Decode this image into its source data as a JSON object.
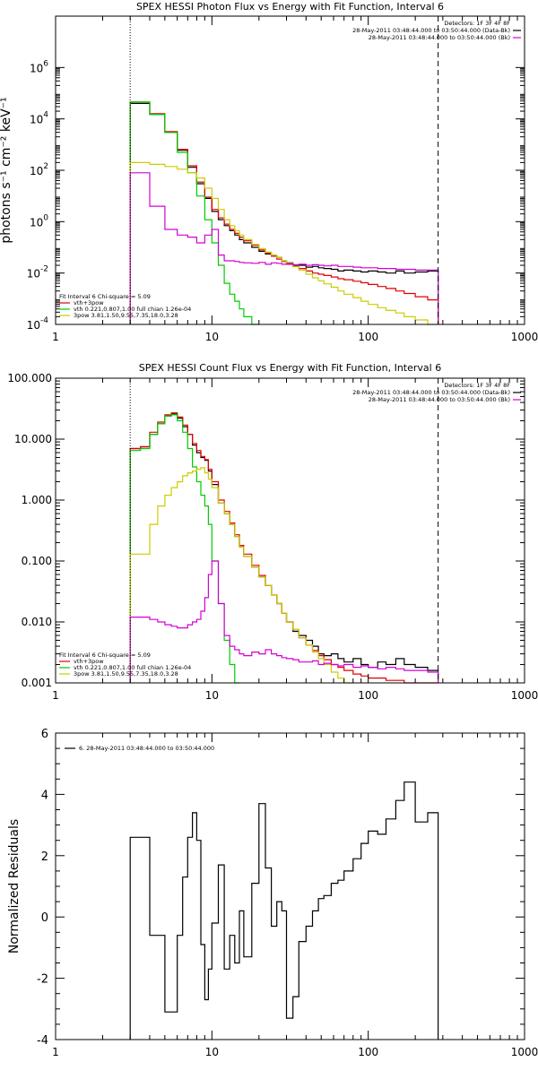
{
  "chart_data": [
    {
      "type": "line",
      "title": "SPEX HESSI Photon Flux vs Energy with Fit Function, Interval 6",
      "ylabel": "photons s⁻¹ cm⁻² keV⁻¹",
      "xlabel": "",
      "xscale": "log",
      "yscale": "log",
      "xlim": [
        1,
        1000
      ],
      "ylim": [
        0.0001,
        100000000
      ],
      "x_ticks": [
        "1",
        "10",
        "100",
        "1000"
      ],
      "y_ticks": [
        {
          "mantissa": "10",
          "exp": "-4"
        },
        {
          "mantissa": "10",
          "exp": "-2"
        },
        {
          "mantissa": "10",
          "exp": "0"
        },
        {
          "mantissa": "10",
          "exp": "2"
        },
        {
          "mantissa": "10",
          "exp": "4"
        },
        {
          "mantissa": "10",
          "exp": "6"
        }
      ],
      "markers": {
        "dotted_x": 3.0,
        "dashed_x": 280
      },
      "legend_top": [
        {
          "text": "Detectors: 1F 3F 4F 8F",
          "color": "#000000"
        },
        {
          "text": "28-May-2011 03:48:44.000 to 03:50:44.000 (Data-Bk)",
          "color": "#000000"
        },
        {
          "text": "28-May-2011 03:48:44.000 to 03:50:44.000 (Bk)",
          "color": "#d400d4"
        }
      ],
      "legend_bottom": [
        {
          "text": "Fit Interval 6   Chi-square = 5.09",
          "color": "#000000"
        },
        {
          "text": "vth+3pow",
          "color": "#e00000"
        },
        {
          "text": "vth 0.221,0.807,1.00  full chian 1.26e-04",
          "color": "#00cc00"
        },
        {
          "text": "3pow 3.81,1.50,9.55,7.35,18.0,3.28",
          "color": "#cccc00"
        }
      ],
      "series": [
        {
          "name": "Data-Bk",
          "color": "#000000",
          "edges": [
            3,
            3.5,
            4,
            5,
            6,
            7,
            8,
            9,
            10,
            11,
            12,
            13,
            14,
            15,
            16,
            18,
            20,
            22,
            24,
            26,
            28,
            30,
            33,
            36,
            40,
            44,
            48,
            52,
            58,
            64,
            70,
            80,
            90,
            100,
            115,
            130,
            150,
            170,
            200,
            240,
            280
          ],
          "values": [
            40000,
            40000,
            15000,
            3000,
            600,
            130,
            30,
            8,
            2.5,
            1.2,
            0.7,
            0.45,
            0.3,
            0.2,
            0.15,
            0.1,
            0.07,
            0.055,
            0.045,
            0.04,
            0.03,
            0.025,
            0.02,
            0.02,
            0.017,
            0.018,
            0.016,
            0.015,
            0.014,
            0.012,
            0.013,
            0.012,
            0.011,
            0.012,
            0.011,
            0.01,
            0.012,
            0.01,
            0.011,
            0.012
          ]
        },
        {
          "name": "vth+3pow",
          "color": "#e00000",
          "edges": [
            3,
            3.5,
            4,
            5,
            6,
            7,
            8,
            9,
            10,
            11,
            12,
            13,
            14,
            15,
            16,
            18,
            20,
            22,
            24,
            26,
            28,
            30,
            33,
            36,
            40,
            44,
            48,
            52,
            58,
            64,
            70,
            80,
            90,
            100,
            115,
            130,
            150,
            170,
            200,
            240,
            280
          ],
          "values": [
            45000,
            45000,
            16000,
            3200,
            650,
            150,
            35,
            9,
            3,
            1.4,
            0.8,
            0.5,
            0.35,
            0.25,
            0.18,
            0.12,
            0.08,
            0.06,
            0.045,
            0.035,
            0.028,
            0.022,
            0.018,
            0.015,
            0.012,
            0.01,
            0.009,
            0.008,
            0.007,
            0.006,
            0.0055,
            0.0048,
            0.0042,
            0.0036,
            0.003,
            0.0025,
            0.002,
            0.0016,
            0.0012,
            0.0009
          ]
        },
        {
          "name": "vth",
          "color": "#00cc00",
          "edges": [
            3,
            3.5,
            4,
            5,
            6,
            7,
            8,
            9,
            10,
            11,
            12,
            13,
            14,
            15,
            16,
            18,
            20
          ],
          "values": [
            45000,
            45000,
            15000,
            3000,
            500,
            80,
            10,
            1.2,
            0.15,
            0.02,
            0.004,
            0.0015,
            0.0008,
            0.0004,
            0.0002,
            0.0001
          ]
        },
        {
          "name": "3pow",
          "color": "#cccc00",
          "edges": [
            3,
            3.5,
            4,
            5,
            6,
            7,
            8,
            9,
            10,
            11,
            12,
            13,
            14,
            15,
            16,
            18,
            20,
            22,
            24,
            26,
            28,
            30,
            33,
            36,
            40,
            44,
            48,
            52,
            58,
            64,
            70,
            80,
            90,
            100,
            115,
            130,
            150,
            170,
            200,
            240,
            280
          ],
          "values": [
            200,
            200,
            170,
            140,
            110,
            80,
            50,
            20,
            8,
            3,
            1.2,
            0.7,
            0.45,
            0.3,
            0.2,
            0.13,
            0.09,
            0.065,
            0.05,
            0.04,
            0.03,
            0.024,
            0.018,
            0.013,
            0.009,
            0.0065,
            0.005,
            0.0038,
            0.0028,
            0.002,
            0.0015,
            0.0011,
            0.0008,
            0.0006,
            0.00045,
            0.00035,
            0.00028,
            0.0002,
            0.00015,
            0.0001
          ]
        },
        {
          "name": "Bk",
          "color": "#d400d4",
          "edges": [
            3,
            3.5,
            4,
            5,
            6,
            7,
            8,
            9,
            10,
            11,
            12,
            13,
            14,
            15,
            16,
            18,
            20,
            22,
            24,
            26,
            28,
            30,
            33,
            36,
            40,
            44,
            48,
            52,
            58,
            64,
            70,
            80,
            90,
            100,
            115,
            130,
            150,
            170,
            200,
            240,
            280
          ],
          "values": [
            80,
            80,
            4,
            0.5,
            0.3,
            0.25,
            0.15,
            0.3,
            0.5,
            0.05,
            0.03,
            0.03,
            0.028,
            0.026,
            0.025,
            0.024,
            0.026,
            0.022,
            0.025,
            0.024,
            0.022,
            0.023,
            0.021,
            0.022,
            0.02,
            0.021,
            0.02,
            0.019,
            0.02,
            0.018,
            0.018,
            0.017,
            0.016,
            0.016,
            0.015,
            0.015,
            0.014,
            0.014,
            0.013,
            0.013
          ]
        }
      ]
    },
    {
      "type": "line",
      "title": "SPEX HESSI Count Flux vs Energy with Fit Function, Interval 6",
      "ylabel": "",
      "xlabel": "",
      "xscale": "log",
      "yscale": "log",
      "xlim": [
        1,
        1000
      ],
      "ylim": [
        0.001,
        100
      ],
      "x_ticks": [
        "1",
        "10",
        "100",
        "1000"
      ],
      "y_ticks": [
        "0.001",
        "0.010",
        "0.100",
        "1.000",
        "10.000",
        "100.000"
      ],
      "markers": {
        "dotted_x": 3.0,
        "dashed_x": 280
      },
      "legend_top": [
        {
          "text": "Detectors: 1F 3F 4F 8F",
          "color": "#000000"
        },
        {
          "text": "28-May-2011 03:48:44.000 to 03:50:44.000 (Data-Bk)",
          "color": "#000000"
        },
        {
          "text": "28-May-2011 03:48:44.000 to 03:50:44.000 (Bk)",
          "color": "#d400d4"
        }
      ],
      "legend_bottom": [
        {
          "text": "Fit Interval 6   Chi-square = 5.09",
          "color": "#000000"
        },
        {
          "text": "vth+3pow",
          "color": "#e00000"
        },
        {
          "text": "vth 0.221,0.807,1.00  full chian 1.26e-04",
          "color": "#00cc00"
        },
        {
          "text": "3pow 3.81,1.50,9.55,7.35,18.0,3.28",
          "color": "#cccc00"
        }
      ],
      "series": [
        {
          "name": "Data-Bk",
          "color": "#000000",
          "edges": [
            3,
            3.5,
            4,
            4.5,
            5,
            5.5,
            6,
            6.5,
            7,
            7.5,
            8,
            8.5,
            9,
            9.5,
            10,
            11,
            12,
            13,
            14,
            15,
            16,
            18,
            20,
            22,
            24,
            26,
            28,
            30,
            33,
            36,
            40,
            44,
            48,
            52,
            58,
            64,
            70,
            80,
            90,
            100,
            115,
            130,
            150,
            170,
            200,
            240,
            280
          ],
          "values": [
            7,
            7.5,
            12,
            18,
            24,
            26,
            22,
            16,
            12,
            8,
            6,
            5,
            4.5,
            3,
            1.8,
            0.9,
            0.6,
            0.4,
            0.25,
            0.17,
            0.12,
            0.08,
            0.055,
            0.04,
            0.028,
            0.02,
            0.014,
            0.01,
            0.007,
            0.006,
            0.005,
            0.004,
            0.003,
            0.0028,
            0.003,
            0.0025,
            0.0022,
            0.0025,
            0.002,
            0.0018,
            0.0022,
            0.002,
            0.0025,
            0.002,
            0.0018,
            0.0016
          ]
        },
        {
          "name": "vth+3pow",
          "color": "#e00000",
          "edges": [
            3,
            3.5,
            4,
            4.5,
            5,
            5.5,
            6,
            6.5,
            7,
            7.5,
            8,
            8.5,
            9,
            9.5,
            10,
            11,
            12,
            13,
            14,
            15,
            16,
            18,
            20,
            22,
            24,
            26,
            28,
            30,
            33,
            36,
            40,
            44,
            48,
            52,
            58,
            64,
            70,
            80,
            90,
            100,
            115,
            130,
            150,
            170,
            200,
            240,
            280
          ],
          "values": [
            7,
            7.5,
            13,
            19,
            25,
            27,
            23,
            17,
            12,
            8.5,
            6.5,
            5.2,
            4.6,
            3.2,
            2,
            1,
            0.65,
            0.42,
            0.27,
            0.18,
            0.13,
            0.085,
            0.058,
            0.04,
            0.028,
            0.02,
            0.014,
            0.01,
            0.0075,
            0.0055,
            0.0042,
            0.0034,
            0.0028,
            0.0024,
            0.002,
            0.0018,
            0.0016,
            0.0014,
            0.0013,
            0.0012,
            0.0012,
            0.0011,
            0.0011,
            0.001,
            0.001,
            0.001
          ]
        },
        {
          "name": "vth",
          "color": "#00cc00",
          "edges": [
            3,
            3.5,
            4,
            4.5,
            5,
            5.5,
            6,
            6.5,
            7,
            7.5,
            8,
            8.5,
            9,
            9.5,
            10,
            11,
            12,
            13,
            14,
            15
          ],
          "values": [
            6.5,
            7,
            12,
            18,
            24,
            25,
            20,
            13,
            7,
            3.5,
            2,
            1.2,
            0.8,
            0.4,
            0.1,
            0.02,
            0.005,
            0.002,
            0.001
          ]
        },
        {
          "name": "3pow",
          "color": "#cccc00",
          "edges": [
            3,
            3.5,
            4,
            4.5,
            5,
            5.5,
            6,
            6.5,
            7,
            7.5,
            8,
            8.5,
            9,
            9.5,
            10,
            11,
            12,
            13,
            14,
            15,
            16,
            18,
            20,
            22,
            24,
            26,
            28,
            30,
            33,
            36,
            40,
            44,
            48,
            52,
            58,
            64,
            70,
            80
          ],
          "values": [
            0.13,
            0.13,
            0.4,
            0.8,
            1.2,
            1.6,
            2,
            2.5,
            2.8,
            3,
            3.2,
            3.4,
            2.8,
            2.2,
            1.6,
            0.9,
            0.6,
            0.4,
            0.25,
            0.17,
            0.12,
            0.08,
            0.055,
            0.04,
            0.028,
            0.02,
            0.014,
            0.01,
            0.0075,
            0.0055,
            0.0042,
            0.0032,
            0.0025,
            0.002,
            0.0015,
            0.0012,
            0.001
          ]
        },
        {
          "name": "Bk",
          "color": "#d400d4",
          "edges": [
            3,
            3.5,
            4,
            4.5,
            5,
            5.5,
            6,
            6.5,
            7,
            7.5,
            8,
            8.5,
            9,
            9.5,
            10,
            11,
            12,
            13,
            14,
            15,
            16,
            18,
            20,
            22,
            24,
            26,
            28,
            30,
            33,
            36,
            40,
            44,
            48,
            52,
            58,
            64,
            70,
            80,
            90,
            100,
            115,
            130,
            150,
            170,
            200,
            240,
            280
          ],
          "values": [
            0.012,
            0.012,
            0.011,
            0.01,
            0.009,
            0.0085,
            0.008,
            0.008,
            0.009,
            0.01,
            0.011,
            0.015,
            0.025,
            0.06,
            0.1,
            0.02,
            0.006,
            0.004,
            0.0035,
            0.003,
            0.0028,
            0.0032,
            0.003,
            0.0035,
            0.003,
            0.0028,
            0.0026,
            0.0025,
            0.0024,
            0.0022,
            0.0022,
            0.0023,
            0.002,
            0.0021,
            0.002,
            0.0019,
            0.002,
            0.0018,
            0.0019,
            0.0018,
            0.0017,
            0.0018,
            0.0017,
            0.0016,
            0.0016,
            0.0015
          ]
        }
      ]
    },
    {
      "type": "line",
      "title": "",
      "ylabel": "Normalized Residuals",
      "xlabel": "",
      "xscale": "log",
      "yscale": "linear",
      "xlim": [
        1,
        1000
      ],
      "ylim": [
        -4,
        6
      ],
      "x_ticks": [
        "1",
        "10",
        "100",
        "1000"
      ],
      "y_ticks": [
        "-4",
        "-2",
        "0",
        "2",
        "4",
        "6"
      ],
      "legend_top": [
        {
          "text": "6. 28-May-2011 03:48:44.000 to 03:50:44.000",
          "color": "#000000"
        }
      ],
      "series": [
        {
          "name": "6. 28-May-2011 03:48:44.000 to 03:50:44.000",
          "color": "#000000",
          "edges": [
            3,
            4,
            4.5,
            5,
            5.5,
            6,
            6.5,
            7,
            7.5,
            8,
            8.5,
            9,
            9.5,
            10,
            11,
            12,
            13,
            14,
            15,
            16,
            18,
            20,
            22,
            24,
            26,
            28,
            30,
            33,
            36,
            40,
            44,
            48,
            52,
            58,
            64,
            70,
            80,
            90,
            100,
            115,
            130,
            150,
            170,
            200,
            240,
            280
          ],
          "values": [
            2.6,
            -0.6,
            -0.6,
            -3.1,
            -3.1,
            -0.6,
            1.3,
            2.6,
            3.4,
            2.5,
            -0.9,
            -2.7,
            -1.7,
            -0.2,
            1.7,
            -1.7,
            -0.6,
            -1.5,
            0.2,
            -1.3,
            1.1,
            3.7,
            1.6,
            -0.3,
            0.5,
            0.2,
            -3.3,
            -2.6,
            -0.8,
            -0.3,
            0.2,
            0.6,
            0.7,
            1.1,
            1.2,
            1.5,
            1.9,
            2.4,
            2.8,
            2.7,
            3.2,
            3.8,
            4.4,
            3.1,
            3.4
          ]
        }
      ]
    }
  ]
}
